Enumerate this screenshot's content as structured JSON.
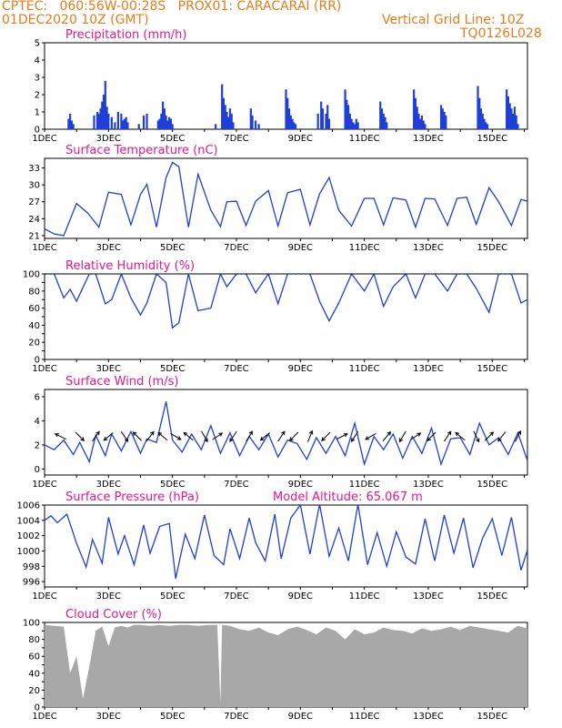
{
  "header": {
    "line1": "CPTEC:   060:56W-00:28S   PROX01: CARACARAI (RR)",
    "line2_left": "01DEC2020 10Z (GMT)",
    "line2_right": "Vertical Grid Line: 10Z",
    "line3_right": "TQ0126L028"
  },
  "colors": {
    "header": "#e87b1e",
    "title": "#e8178a",
    "series": "#1f3fd6",
    "cloud": "#a8a8a8"
  },
  "chart_data": [
    {
      "id": "precip",
      "type": "bar",
      "title": "Precipitation (mm/h)",
      "ylim": [
        0,
        5
      ],
      "yticks": [
        0,
        1,
        2,
        3,
        4,
        5
      ],
      "xticks": [
        "1DEC",
        "3DEC",
        "5DEC",
        "7DEC",
        "9DEC",
        "11DEC",
        "13DEC",
        "15DEC"
      ],
      "xlim_days": [
        1,
        16.1
      ],
      "x": [
        1.75,
        1.8,
        1.85,
        1.9,
        2.55,
        2.65,
        2.7,
        2.75,
        2.8,
        2.85,
        2.9,
        2.95,
        3.0,
        3.1,
        3.2,
        3.3,
        3.4,
        3.45,
        3.5,
        3.55,
        3.6,
        3.95,
        4.1,
        4.2,
        4.55,
        4.6,
        4.65,
        4.7,
        4.75,
        4.8,
        4.85,
        4.9,
        4.95,
        5.0,
        6.35,
        6.55,
        6.6,
        6.65,
        6.7,
        6.75,
        6.8,
        6.85,
        6.9,
        7.45,
        7.5,
        7.6,
        7.7,
        8.55,
        8.6,
        8.65,
        8.7,
        8.75,
        8.8,
        8.85,
        9.55,
        9.65,
        9.7,
        9.8,
        9.85,
        9.9,
        10.4,
        10.45,
        10.5,
        10.55,
        10.6,
        10.65,
        10.7,
        10.75,
        10.8,
        11.5,
        11.55,
        11.6,
        11.65,
        11.7,
        12.55,
        12.6,
        12.65,
        12.7,
        12.75,
        12.8,
        12.85,
        12.9,
        13.4,
        13.45,
        13.5,
        13.55,
        14.55,
        14.6,
        14.65,
        14.7,
        14.75,
        14.8,
        14.85,
        15.45,
        15.5,
        15.55,
        15.6,
        15.65,
        15.7,
        15.75,
        15.8
      ],
      "values": [
        0.6,
        0.9,
        0.5,
        0.3,
        0.8,
        1.0,
        0.9,
        1.2,
        1.6,
        2.0,
        2.8,
        1.3,
        0.9,
        0.7,
        0.4,
        1.0,
        0.9,
        0.5,
        0.6,
        0.7,
        0.4,
        0.3,
        0.8,
        0.9,
        0.5,
        0.6,
        0.9,
        1.6,
        1.2,
        0.8,
        0.5,
        0.7,
        0.6,
        0.3,
        0.3,
        2.6,
        1.8,
        1.4,
        1.0,
        0.7,
        1.2,
        0.9,
        0.4,
        1.2,
        0.8,
        0.5,
        0.3,
        2.3,
        1.8,
        1.2,
        0.8,
        0.6,
        0.4,
        0.3,
        0.9,
        1.6,
        1.2,
        0.9,
        1.4,
        0.6,
        2.3,
        1.7,
        1.4,
        0.9,
        0.6,
        0.4,
        0.3,
        0.6,
        0.4,
        1.6,
        1.2,
        0.9,
        0.7,
        0.4,
        2.3,
        1.8,
        1.3,
        0.9,
        0.6,
        0.8,
        0.5,
        0.3,
        1.4,
        1.2,
        1.0,
        0.8,
        2.5,
        1.8,
        1.2,
        0.9,
        0.6,
        0.4,
        0.3,
        2.3,
        1.9,
        1.5,
        1.2,
        0.9,
        1.3,
        0.8,
        0.3
      ]
    },
    {
      "id": "temp",
      "type": "line",
      "title": "Surface Temperature (nC)",
      "ylim": [
        20.5,
        34.7
      ],
      "yticks": [
        21,
        24,
        27,
        30,
        33
      ],
      "xticks": [
        "1DEC",
        "3DEC",
        "5DEC",
        "7DEC",
        "9DEC",
        "11DEC",
        "13DEC",
        "15DEC"
      ],
      "xlim_days": [
        1,
        16.1
      ],
      "x": [
        1.0,
        1.3,
        1.6,
        2.0,
        2.35,
        2.7,
        3.0,
        3.4,
        3.7,
        4.0,
        4.2,
        4.5,
        4.8,
        5.0,
        5.2,
        5.5,
        5.8,
        6.2,
        6.5,
        6.7,
        7.0,
        7.3,
        7.6,
        8.0,
        8.3,
        8.6,
        9.0,
        9.3,
        9.6,
        9.9,
        10.2,
        10.6,
        11.0,
        11.3,
        11.6,
        11.9,
        12.3,
        12.6,
        12.9,
        13.2,
        13.6,
        13.9,
        14.2,
        14.5,
        14.9,
        15.2,
        15.6,
        15.9,
        16.1
      ],
      "values": [
        22.2,
        21.3,
        21.0,
        26.7,
        25.0,
        22.5,
        28.7,
        28.3,
        22.9,
        28.3,
        30.1,
        22.5,
        31.3,
        34.0,
        33.2,
        22.5,
        31.9,
        25.5,
        22.6,
        27.0,
        27.1,
        22.8,
        27.1,
        29.0,
        22.7,
        28.6,
        29.2,
        22.9,
        28.4,
        31.3,
        25.5,
        22.7,
        27.6,
        27.6,
        22.9,
        27.7,
        27.3,
        22.5,
        27.6,
        27.5,
        22.8,
        27.6,
        27.8,
        23.0,
        29.5,
        27.0,
        22.8,
        27.4,
        27.1
      ]
    },
    {
      "id": "rh",
      "type": "line",
      "title": "Relative Humidity (%)",
      "ylim": [
        0,
        100
      ],
      "yticks": [
        0,
        10,
        20,
        30,
        40,
        50,
        60,
        70,
        80,
        90,
        100
      ],
      "ytick_labels_shown": [
        0,
        20,
        40,
        60,
        80,
        100
      ],
      "xticks": [
        "1DEC",
        "3DEC",
        "5DEC",
        "7DEC",
        "9DEC",
        "11DEC",
        "13DEC",
        "15DEC"
      ],
      "xlim_days": [
        1,
        16.1
      ],
      "x": [
        1.0,
        1.3,
        1.6,
        1.8,
        2.0,
        2.4,
        2.6,
        2.9,
        3.1,
        3.4,
        3.7,
        4.0,
        4.2,
        4.5,
        4.8,
        5.0,
        5.2,
        5.5,
        5.8,
        6.2,
        6.5,
        6.7,
        7.0,
        7.3,
        7.6,
        8.0,
        8.3,
        8.6,
        9.0,
        9.3,
        9.6,
        9.9,
        10.2,
        10.6,
        11.0,
        11.3,
        11.6,
        11.9,
        12.3,
        12.6,
        12.9,
        13.2,
        13.6,
        13.9,
        14.2,
        14.5,
        14.9,
        15.2,
        15.6,
        15.9,
        16.1
      ],
      "values": [
        100,
        100,
        72,
        82,
        68,
        100,
        100,
        65,
        70,
        100,
        72,
        52,
        66,
        100,
        90,
        37,
        43,
        100,
        57,
        60,
        100,
        85,
        100,
        100,
        78,
        100,
        65,
        100,
        100,
        100,
        68,
        45,
        66,
        100,
        80,
        100,
        62,
        85,
        100,
        72,
        100,
        100,
        80,
        100,
        100,
        83,
        55,
        100,
        100,
        66,
        70
      ]
    },
    {
      "id": "wind",
      "type": "line",
      "title": "Surface Wind (m/s)",
      "ylim": [
        -0.5,
        6.6
      ],
      "yticks": [
        0,
        2,
        4,
        6
      ],
      "xticks": [
        "1DEC",
        "3DEC",
        "5DEC",
        "7DEC",
        "9DEC",
        "11DEC",
        "13DEC",
        "15DEC"
      ],
      "xlim_days": [
        1,
        16.1
      ],
      "x": [
        1.0,
        1.3,
        1.6,
        1.9,
        2.1,
        2.4,
        2.6,
        2.9,
        3.1,
        3.4,
        3.7,
        4.0,
        4.2,
        4.5,
        4.8,
        5.0,
        5.3,
        5.6,
        5.9,
        6.2,
        6.5,
        6.8,
        7.1,
        7.4,
        7.7,
        8.0,
        8.3,
        8.6,
        8.9,
        9.2,
        9.5,
        9.8,
        10.1,
        10.4,
        10.7,
        11.0,
        11.3,
        11.6,
        11.9,
        12.2,
        12.5,
        12.8,
        13.1,
        13.4,
        13.7,
        14.0,
        14.3,
        14.6,
        14.9,
        15.2,
        15.5,
        15.8,
        16.1
      ],
      "values": [
        2.0,
        1.6,
        2.4,
        1.2,
        2.2,
        0.6,
        2.8,
        1.1,
        2.9,
        1.5,
        3.1,
        1.3,
        2.5,
        2.2,
        5.6,
        2.4,
        1.4,
        2.9,
        1.6,
        3.6,
        1.3,
        3.0,
        1.1,
        2.7,
        1.6,
        2.9,
        1.0,
        2.4,
        2.1,
        0.8,
        2.6,
        1.3,
        2.7,
        1.1,
        3.8,
        0.4,
        2.7,
        1.6,
        2.9,
        0.9,
        2.7,
        1.3,
        3.4,
        0.4,
        2.5,
        2.6,
        1.2,
        3.8,
        2.0,
        2.6,
        1.2,
        3.0,
        0.7
      ],
      "arrows": {
        "x": [
          1.5,
          2.1,
          2.6,
          3.0,
          3.5,
          3.9,
          4.3,
          4.7,
          5.1,
          5.5,
          6.0,
          6.4,
          6.9,
          7.4,
          7.9,
          8.4,
          8.8,
          9.3,
          9.8,
          10.3,
          10.7,
          11.2,
          11.7,
          12.2,
          12.6,
          13.1,
          13.6,
          14.0,
          14.5,
          14.9,
          15.3,
          15.8
        ],
        "u": [
          -0.8,
          0.6,
          0.5,
          -0.6,
          0.4,
          -0.5,
          0.3,
          -0.7,
          0.5,
          -0.6,
          0.4,
          0.6,
          -0.4,
          0.3,
          -0.5,
          0.4,
          -0.6,
          0.2,
          -0.5,
          0.6,
          -0.4,
          -0.7,
          0.5,
          -0.3,
          0.6,
          -0.5,
          0.4,
          -0.6,
          0.3,
          0.5,
          -0.4,
          0.3
        ],
        "v": [
          0.4,
          -0.6,
          0.7,
          -0.5,
          -0.6,
          0.5,
          0.4,
          0.6,
          -0.3,
          0.5,
          -0.7,
          0.4,
          -0.6,
          0.5,
          -0.4,
          0.6,
          -0.6,
          0.5,
          -0.5,
          0.3,
          -0.6,
          -0.4,
          0.6,
          -0.5,
          0.4,
          -0.5,
          0.6,
          0.5,
          -0.6,
          0.5,
          -0.5,
          0.6
        ]
      }
    },
    {
      "id": "press",
      "type": "line",
      "title": "Surface Pressure (hPa)",
      "title2": "Model Altitude: 65.067 m",
      "ylim": [
        995.3,
        1006
      ],
      "yticks": [
        996,
        998,
        1000,
        1002,
        1004,
        1006
      ],
      "xticks": [
        "1DEC",
        "3DEC",
        "5DEC",
        "7DEC",
        "9DEC",
        "11DEC",
        "13DEC",
        "15DEC"
      ],
      "xlim_days": [
        1,
        16.1
      ],
      "x": [
        1.0,
        1.2,
        1.4,
        1.7,
        2.0,
        2.3,
        2.5,
        2.8,
        3.0,
        3.3,
        3.5,
        3.8,
        4.1,
        4.3,
        4.6,
        4.9,
        5.1,
        5.4,
        5.7,
        6.0,
        6.3,
        6.6,
        6.8,
        7.1,
        7.4,
        7.6,
        7.9,
        8.2,
        8.4,
        8.7,
        9.0,
        9.3,
        9.6,
        9.9,
        10.2,
        10.5,
        10.8,
        11.1,
        11.4,
        11.7,
        12.0,
        12.3,
        12.6,
        12.9,
        13.2,
        13.5,
        13.8,
        14.1,
        14.4,
        14.7,
        15.0,
        15.3,
        15.6,
        15.9,
        16.1
      ],
      "values": [
        1004.0,
        1004.6,
        1003.7,
        1004.8,
        1001.0,
        997.9,
        1001.5,
        998.4,
        1004.4,
        999.6,
        1002.0,
        998.2,
        1003.4,
        999.7,
        1003.2,
        1003.6,
        996.4,
        1002.2,
        999.0,
        1004.7,
        999.4,
        998.2,
        1002.9,
        999.0,
        1004.3,
        1001.1,
        998.7,
        1004.8,
        999.0,
        1004.3,
        1006.0,
        999.6,
        1006.1,
        999.3,
        1003.0,
        998.7,
        1006.1,
        998.2,
        1002.4,
        998.0,
        1002.5,
        999.2,
        998.3,
        1004.2,
        998.7,
        1004.7,
        999.7,
        1004.3,
        997.8,
        1001.7,
        1004.2,
        999.4,
        1004.4,
        997.5,
        1000.1
      ]
    },
    {
      "id": "cloud",
      "type": "area",
      "title": "Cloud Cover (%)",
      "ylim": [
        0,
        100
      ],
      "yticks": [
        0,
        10,
        20,
        30,
        40,
        50,
        60,
        70,
        80,
        90,
        100
      ],
      "ytick_labels_shown": [
        0,
        20,
        40,
        60,
        80,
        100
      ],
      "xticks": [
        "1DEC",
        "3DEC",
        "5DEC",
        "7DEC",
        "9DEC",
        "11DEC",
        "13DEC",
        "15DEC"
      ],
      "xlim_days": [
        1,
        16.1
      ],
      "x": [
        1.0,
        1.3,
        1.6,
        1.8,
        2.0,
        2.2,
        2.4,
        2.6,
        2.8,
        3.0,
        3.2,
        3.4,
        3.6,
        3.8,
        4.0,
        4.3,
        4.6,
        4.9,
        5.2,
        5.5,
        5.8,
        6.1,
        6.4,
        6.5,
        6.55,
        6.6,
        6.8,
        7.1,
        7.4,
        7.7,
        8.0,
        8.3,
        8.6,
        8.9,
        9.2,
        9.5,
        9.8,
        10.1,
        10.4,
        10.7,
        11.0,
        11.3,
        11.6,
        11.9,
        12.2,
        12.5,
        12.8,
        13.1,
        13.4,
        13.7,
        14.0,
        14.3,
        14.6,
        14.9,
        15.2,
        15.5,
        15.8,
        16.1
      ],
      "values": [
        97,
        96,
        95,
        40,
        60,
        10,
        48,
        90,
        95,
        72,
        94,
        96,
        94,
        97,
        97,
        96,
        97,
        96,
        97,
        97,
        96,
        97,
        97,
        5,
        97,
        97,
        96,
        92,
        90,
        94,
        88,
        85,
        92,
        95,
        91,
        86,
        94,
        90,
        80,
        92,
        86,
        88,
        94,
        91,
        90,
        87,
        93,
        90,
        92,
        95,
        91,
        96,
        94,
        92,
        90,
        88,
        96,
        93
      ]
    }
  ]
}
